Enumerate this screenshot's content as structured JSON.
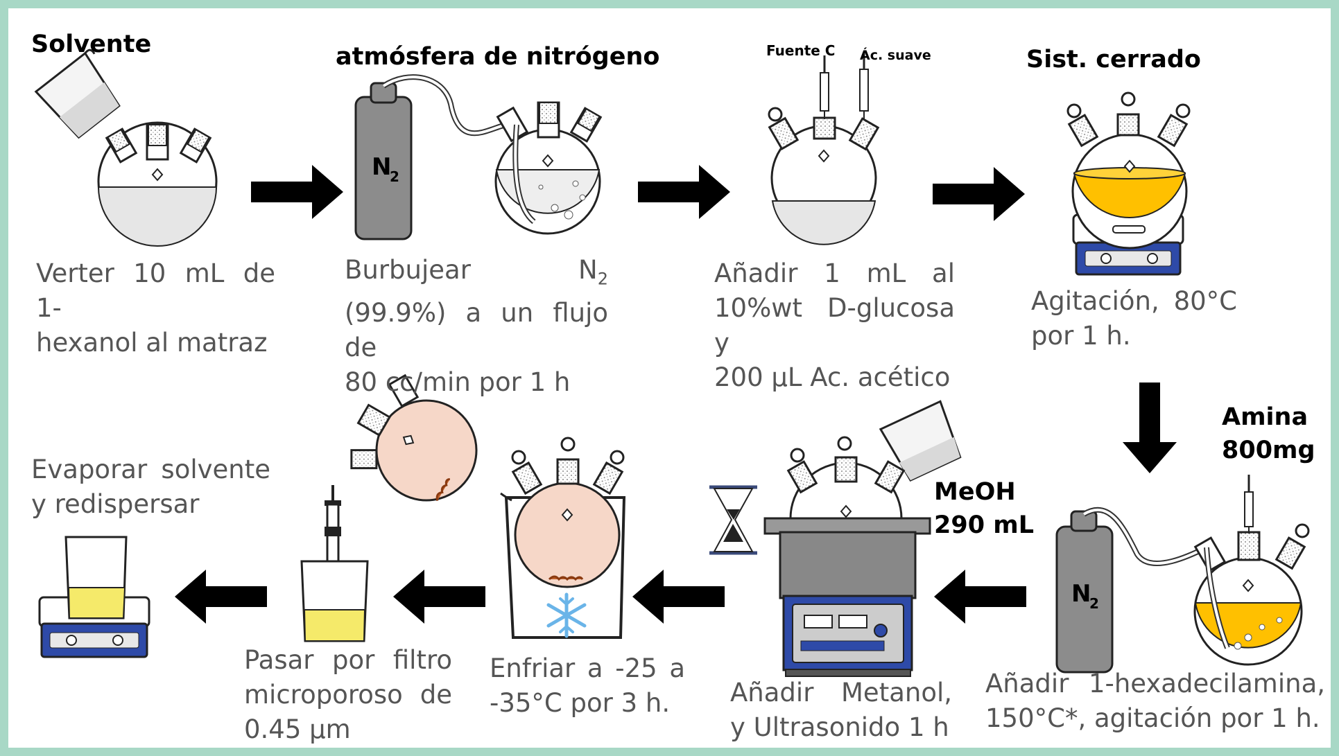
{
  "steps": [
    {
      "heading": "Solvente",
      "lines": [
        "Verter 10 mL de 1-",
        "hexanol al matraz"
      ]
    },
    {
      "heading": "atmósfera de nitrógeno",
      "lines_html": true,
      "gas": "N",
      "gas_sub": "2",
      "line1a": "Burbujear",
      "line1b": "N",
      "line1b_sub": "2",
      "line2": "(99.9%) a un flujo de",
      "line3": "80 cc/min por 1 h"
    },
    {
      "syringe_left": "Fuente C",
      "syringe_right": "Ác. suave",
      "lines": [
        "Añadir 1 mL al",
        "10%wt D-glucosa y",
        "200 µL Ac. acético"
      ]
    },
    {
      "heading": "Sist. cerrado",
      "lines": [
        "Agitación, 80°C",
        "por 1 h."
      ]
    },
    {
      "heading_line1": "Amina",
      "heading_line2": "800mg",
      "gas": "N",
      "gas_sub": "2",
      "lines": [
        "Añadir 1-hexadecilamina,",
        "150°C*, agitación por 1 h."
      ]
    },
    {
      "reagent_line1": "MeOH",
      "reagent_line2": "290 mL",
      "lines": [
        "Añadir Metanol,",
        "y Ultrasonido 1 h"
      ]
    },
    {
      "lines": [
        "Enfriar a -25 a",
        "-35°C por 3 h."
      ]
    },
    {
      "lines": [
        "Pasar por filtro",
        "microporoso de",
        "0.45 µm"
      ]
    },
    {
      "heading_line1": "Evaporar solvente",
      "heading_line2": "y redispersar"
    }
  ],
  "colors": {
    "frame": "#a8d8c6",
    "yellow_liquid": "#ffc000",
    "pale_yellow": "#f5ea6a",
    "plate_blue": "#2e4aa8",
    "cylinder_gray": "#8c8c8c",
    "pink_flask": "#f6d7c8",
    "ice_blue": "#6ab4e8",
    "arrow": "#000000"
  }
}
